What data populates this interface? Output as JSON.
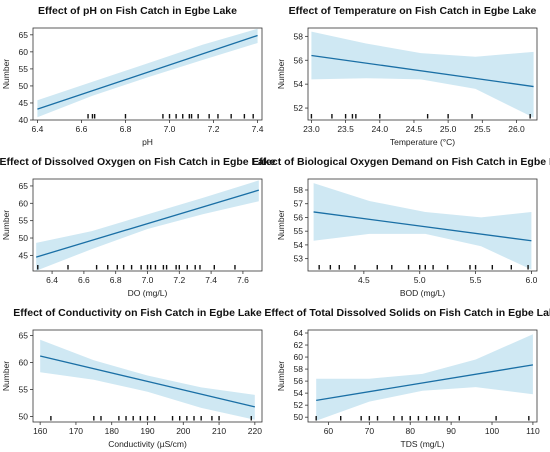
{
  "colors": {
    "band": "#cfe8f3",
    "line": "#1a6fa5",
    "axis": "#333333",
    "rug": "#111111"
  },
  "chart_data": [
    {
      "type": "line",
      "title": "Effect of pH on Fish Catch in Egbe Lake",
      "xlabel": "pH",
      "ylabel": "Number",
      "xlim": [
        6.38,
        7.42
      ],
      "ylim": [
        40,
        67
      ],
      "xticks": [
        6.4,
        6.6,
        6.8,
        7.0,
        7.2,
        7.4
      ],
      "xtick_labels": [
        "6.4",
        "6.6",
        "6.8",
        "7.0",
        "7.2",
        "7.4"
      ],
      "yticks": [
        40,
        45,
        50,
        55,
        60,
        65
      ],
      "ytick_labels": [
        "40",
        "45",
        "50",
        "55",
        "60",
        "65"
      ],
      "fit": {
        "x": [
          6.4,
          7.4
        ],
        "y": [
          43.2,
          64.8
        ]
      },
      "ci_upper": {
        "x": [
          6.4,
          6.65,
          6.9,
          7.15,
          7.4
        ],
        "y": [
          45.8,
          51.2,
          56.6,
          62.1,
          66.8
        ]
      },
      "ci_lower": {
        "x": [
          6.4,
          6.65,
          6.9,
          7.15,
          7.4
        ],
        "y": [
          40.8,
          47.1,
          52.5,
          57.6,
          62.6
        ]
      },
      "rug": [
        6.63,
        6.65,
        6.66,
        6.8,
        6.97,
        7.0,
        7.03,
        7.06,
        7.09,
        7.1,
        7.13,
        7.18,
        7.22,
        7.28,
        7.34,
        7.38
      ]
    },
    {
      "type": "line",
      "title": "Effect of Temperature on Fish Catch in Egbe Lake",
      "xlabel": "Temperature (°C)",
      "ylabel": "Number",
      "xlim": [
        22.95,
        26.3
      ],
      "ylim": [
        51.0,
        58.7
      ],
      "xticks": [
        23.0,
        23.5,
        24.0,
        24.5,
        25.0,
        25.5,
        26.0
      ],
      "xtick_labels": [
        "23.0",
        "23.5",
        "24.0",
        "24.5",
        "25.0",
        "25.5",
        "26.0"
      ],
      "yticks": [
        52,
        54,
        56,
        58
      ],
      "ytick_labels": [
        "52",
        "54",
        "56",
        "58"
      ],
      "fit": {
        "x": [
          23.0,
          26.25
        ],
        "y": [
          56.4,
          53.8
        ]
      },
      "ci_upper": {
        "x": [
          23.0,
          23.8,
          24.6,
          25.4,
          26.25
        ],
        "y": [
          58.4,
          57.4,
          56.6,
          56.3,
          56.7
        ]
      },
      "ci_lower": {
        "x": [
          23.0,
          23.8,
          24.6,
          25.4,
          26.25
        ],
        "y": [
          54.4,
          54.5,
          54.4,
          53.6,
          51.2
        ]
      },
      "rug": [
        23.0,
        23.3,
        23.5,
        23.6,
        23.65,
        24.0,
        24.7,
        25.0,
        25.35,
        26.2
      ]
    },
    {
      "type": "line",
      "title": "Effect of Dissolved Oxygen on Fish Catch in Egbe Lake",
      "xlabel": "DO (mg/L)",
      "ylabel": "Number",
      "xlim": [
        6.28,
        7.72
      ],
      "ylim": [
        40.5,
        67
      ],
      "xticks": [
        6.4,
        6.6,
        6.8,
        7.0,
        7.2,
        7.4,
        7.6
      ],
      "xtick_labels": [
        "6.4",
        "6.6",
        "6.8",
        "7.0",
        "7.2",
        "7.4",
        "7.6"
      ],
      "yticks": [
        45,
        50,
        55,
        60,
        65
      ],
      "ytick_labels": [
        "45",
        "50",
        "55",
        "60",
        "65"
      ],
      "fit": {
        "x": [
          6.3,
          7.7
        ],
        "y": [
          44.5,
          63.8
        ]
      },
      "ci_upper": {
        "x": [
          6.3,
          6.65,
          7.0,
          7.35,
          7.7
        ],
        "y": [
          48.6,
          52.0,
          56.8,
          61.6,
          66.6
        ]
      },
      "ci_lower": {
        "x": [
          6.3,
          6.65,
          7.0,
          7.35,
          7.7
        ],
        "y": [
          40.6,
          46.8,
          52.6,
          56.9,
          60.6
        ]
      },
      "rug": [
        6.31,
        6.5,
        6.68,
        6.75,
        6.81,
        6.85,
        6.9,
        6.96,
        7.0,
        7.02,
        7.05,
        7.1,
        7.12,
        7.18,
        7.2,
        7.25,
        7.3,
        7.33,
        7.42,
        7.55
      ]
    },
    {
      "type": "line",
      "title": "Effect of Biological Oxygen Demand on Fish Catch in Egbe Lake",
      "xlabel": "BOD (mg/L)",
      "ylabel": "Number",
      "xlim": [
        4.0,
        6.05
      ],
      "ylim": [
        52.1,
        58.8
      ],
      "xticks": [
        4.5,
        5.0,
        5.5,
        6.0
      ],
      "xtick_labels": [
        "4.5",
        "5.0",
        "5.5",
        "6.0"
      ],
      "yticks": [
        53,
        54,
        55,
        56,
        57,
        58
      ],
      "ytick_labels": [
        "53",
        "54",
        "55",
        "56",
        "57",
        "58"
      ],
      "fit": {
        "x": [
          4.05,
          6.0
        ],
        "y": [
          56.4,
          54.3
        ]
      },
      "ci_upper": {
        "x": [
          4.05,
          4.55,
          5.05,
          5.55,
          6.0
        ],
        "y": [
          58.5,
          57.2,
          56.4,
          56.0,
          56.4
        ]
      },
      "ci_lower": {
        "x": [
          4.05,
          4.55,
          5.05,
          5.55,
          6.0
        ],
        "y": [
          54.3,
          54.8,
          54.8,
          53.9,
          52.2
        ]
      },
      "rug": [
        4.1,
        4.2,
        4.28,
        4.42,
        4.62,
        4.75,
        4.9,
        5.0,
        5.05,
        5.12,
        5.25,
        5.45,
        5.5,
        5.65,
        5.82,
        5.97
      ]
    },
    {
      "type": "line",
      "title": "Effect of Conductivity on Fish Catch in Egbe Lake",
      "xlabel": "Conductivity (µS/cm)",
      "ylabel": "Number",
      "xlim": [
        158,
        222
      ],
      "ylim": [
        49,
        66
      ],
      "xticks": [
        160,
        170,
        180,
        190,
        200,
        210,
        220
      ],
      "xtick_labels": [
        "160",
        "170",
        "180",
        "190",
        "200",
        "210",
        "220"
      ],
      "yticks": [
        50,
        55,
        60,
        65
      ],
      "ytick_labels": [
        "50",
        "55",
        "60",
        "65"
      ],
      "fit": {
        "x": [
          160,
          220
        ],
        "y": [
          61.2,
          51.8
        ]
      },
      "ci_upper": {
        "x": [
          160,
          175,
          190,
          205,
          220
        ],
        "y": [
          64.2,
          60.4,
          57.6,
          55.4,
          54.0
        ]
      },
      "ci_lower": {
        "x": [
          160,
          175,
          190,
          205,
          220
        ],
        "y": [
          58.2,
          56.8,
          54.6,
          51.6,
          49.4
        ]
      },
      "rug": [
        163,
        175,
        177,
        182,
        184,
        186,
        188,
        190,
        192,
        197,
        199,
        201,
        203,
        205,
        208,
        210,
        219
      ]
    },
    {
      "type": "line",
      "title": "Effect of Total Dissolved Solids on Fish Catch in Egbe Lake",
      "xlabel": "TDS (mg/L)",
      "ylabel": "Number",
      "xlim": [
        55,
        111
      ],
      "ylim": [
        49.2,
        64.5
      ],
      "xticks": [
        60,
        70,
        80,
        90,
        100,
        110
      ],
      "xtick_labels": [
        "60",
        "70",
        "80",
        "90",
        "100",
        "110"
      ],
      "yticks": [
        50,
        52,
        54,
        56,
        58,
        60,
        62,
        64
      ],
      "ytick_labels": [
        "50",
        "52",
        "54",
        "56",
        "58",
        "60",
        "62",
        "64"
      ],
      "fit": {
        "x": [
          57,
          110
        ],
        "y": [
          52.8,
          58.7
        ]
      },
      "ci_upper": {
        "x": [
          57,
          70,
          83,
          96,
          110
        ],
        "y": [
          56.4,
          56.4,
          57.2,
          59.6,
          63.8
        ]
      },
      "ci_lower": {
        "x": [
          57,
          70,
          83,
          96,
          110
        ],
        "y": [
          49.4,
          52.6,
          54.4,
          55.0,
          53.8
        ]
      },
      "rug": [
        57,
        63,
        68,
        70,
        72,
        76,
        78,
        80,
        82,
        84,
        86,
        87,
        89,
        92,
        101,
        109
      ]
    }
  ]
}
